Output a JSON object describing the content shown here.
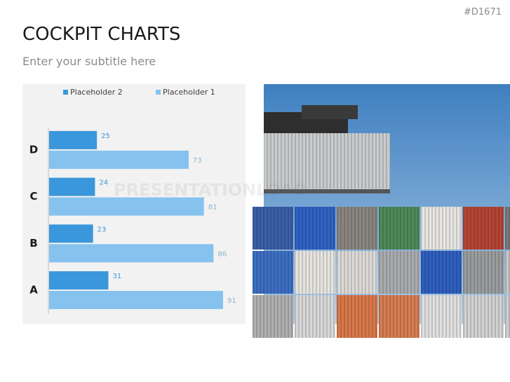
{
  "header": {
    "code": "#D1671",
    "title": "COCKPIT CHARTS",
    "subtitle": "Enter your subtitle here"
  },
  "watermark": "PRESENTATIONLOAD",
  "chart_data": {
    "type": "bar",
    "orientation": "horizontal",
    "categories": [
      "A",
      "B",
      "C",
      "D"
    ],
    "series": [
      {
        "name": "Placeholder 2",
        "color": "#3a97db",
        "values": [
          31,
          23,
          24,
          25
        ]
      },
      {
        "name": "Placeholder 1",
        "color": "#86c2ee",
        "values": [
          91,
          86,
          81,
          73
        ]
      }
    ],
    "xlim": [
      0,
      100
    ],
    "legend": "top"
  }
}
